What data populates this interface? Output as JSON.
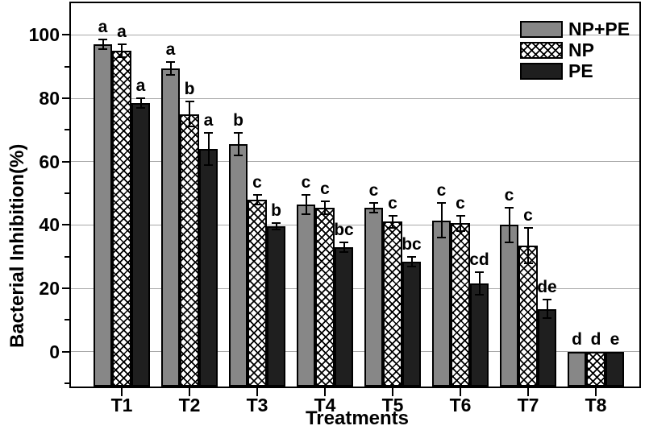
{
  "chart_data": {
    "type": "bar",
    "title": "",
    "xlabel": "Treatments",
    "ylabel": "Bacterial Inhibition(%)",
    "categories": [
      "T1",
      "T2",
      "T3",
      "T4",
      "T5",
      "T6",
      "T7",
      "T8"
    ],
    "series": [
      {
        "name": "NP+PE",
        "fill": "gray",
        "values": [
          97,
          89.5,
          65.5,
          46.5,
          45.5,
          41.5,
          40,
          0
        ],
        "errors": [
          1.5,
          2,
          3.5,
          3,
          1.5,
          5.5,
          5.5,
          0
        ],
        "sig_letters": [
          "a",
          "a",
          "b",
          "c",
          "c",
          "c",
          "c",
          "d"
        ]
      },
      {
        "name": "NP",
        "fill": "cross",
        "values": [
          95,
          75,
          48,
          45.5,
          41,
          40.5,
          33.5,
          0
        ],
        "errors": [
          2,
          4,
          1.5,
          2,
          2,
          2.5,
          5.5,
          0
        ],
        "sig_letters": [
          "a",
          "b",
          "c",
          "c",
          "c",
          "c",
          "c",
          "d"
        ]
      },
      {
        "name": "PE",
        "fill": "dark",
        "values": [
          78.5,
          64,
          39.5,
          33,
          28.5,
          21.5,
          13.5,
          0
        ],
        "errors": [
          1.5,
          5,
          1,
          1.5,
          1.5,
          3.5,
          3,
          0
        ],
        "sig_letters": [
          "a",
          "a",
          "b",
          "bc",
          "bc",
          "cd",
          "de",
          "e"
        ]
      }
    ],
    "ylim": [
      -11,
      110
    ],
    "yticks": [
      0,
      20,
      40,
      60,
      80,
      100
    ],
    "yticks_minor": [
      -10,
      10,
      30,
      50,
      70,
      90
    ],
    "grid": true,
    "legend_position": "top-right",
    "colors": {
      "bar_gray": "#878787",
      "bar_dark": "#1f1f1f",
      "hatch_fg": "#000000",
      "hatch_bg": "#ffffff",
      "gridline": "#a9a9a9",
      "axis": "#000000"
    }
  }
}
